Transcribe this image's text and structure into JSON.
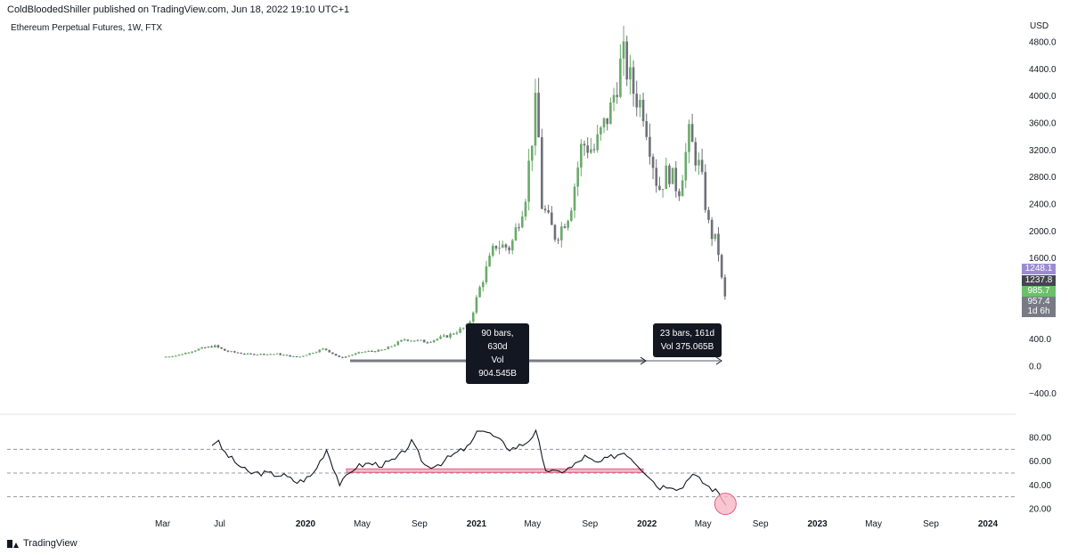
{
  "header": {
    "publisher": "ColdBloodedShiller published on TradingView.com, Jun 18, 2022 19:10 UTC+1"
  },
  "chart": {
    "symbol_label": "Ethereum Perpetual Futures, 1W, FTX",
    "currency": "USD"
  },
  "price_tags": [
    {
      "label": "1248.1",
      "color": "#9b8bd1"
    },
    {
      "label": "1237.8",
      "color": "#434651"
    },
    {
      "label": "985.7",
      "color": "#6cbf6b"
    },
    {
      "label": "957.4",
      "color": "#787b86"
    },
    {
      "label": "1d 6h",
      "color": "#787b86"
    }
  ],
  "measures": [
    {
      "bars": "90 bars, 630d",
      "vol": "Vol 904.545B"
    },
    {
      "bars": "23 bars, 161d",
      "vol": "Vol 375.065B"
    }
  ],
  "footer": {
    "brand": "TradingView"
  },
  "chart_data": [
    {
      "type": "candlestick",
      "title": "Ethereum Perpetual Futures, 1W, FTX",
      "ylabel": "USD",
      "y_ticks": [
        4800,
        4400,
        4000,
        3600,
        3200,
        2800,
        2400,
        2000,
        1600,
        400,
        0,
        -400
      ],
      "y_tick_labels": [
        "4800.0",
        "4400.0",
        "4000.0",
        "3600.0",
        "3200.0",
        "2800.0",
        "2400.0",
        "2000.0",
        "1600.0",
        "400.0",
        "0.0",
        "−400.0"
      ],
      "ylim": [
        -550,
        4900
      ],
      "x_tick_labels": [
        "Mar",
        "Jul",
        "2020",
        "May",
        "Sep",
        "2021",
        "May",
        "Sep",
        "2022",
        "May",
        "Sep",
        "2023",
        "May",
        "Sep",
        "2024"
      ],
      "x_tick_dates": [
        "2019-03-01",
        "2019-07-01",
        "2020-01-01",
        "2020-05-01",
        "2020-09-01",
        "2021-01-01",
        "2021-05-01",
        "2021-09-01",
        "2022-01-01",
        "2022-05-01",
        "2022-09-01",
        "2023-01-01",
        "2023-05-01",
        "2023-09-01",
        "2024-01-01"
      ],
      "close_path": [
        [
          "2019-03-01",
          134
        ],
        [
          "2019-04-01",
          160
        ],
        [
          "2019-05-15",
          250
        ],
        [
          "2019-06-20",
          300
        ],
        [
          "2019-07-15",
          220
        ],
        [
          "2019-09-01",
          175
        ],
        [
          "2019-11-01",
          180
        ],
        [
          "2019-12-15",
          130
        ],
        [
          "2020-02-10",
          260
        ],
        [
          "2020-03-15",
          120
        ],
        [
          "2020-05-01",
          210
        ],
        [
          "2020-06-15",
          235
        ],
        [
          "2020-08-01",
          400
        ],
        [
          "2020-09-15",
          360
        ],
        [
          "2020-11-01",
          450
        ],
        [
          "2020-12-15",
          600
        ],
        [
          "2021-01-10",
          1200
        ],
        [
          "2021-02-10",
          1800
        ],
        [
          "2021-03-15",
          1750
        ],
        [
          "2021-04-15",
          2500
        ],
        [
          "2021-05-10",
          4000
        ],
        [
          "2021-05-20",
          2400
        ],
        [
          "2021-06-20",
          1900
        ],
        [
          "2021-07-20",
          2300
        ],
        [
          "2021-08-15",
          3300
        ],
        [
          "2021-09-10",
          3200
        ],
        [
          "2021-10-15",
          3800
        ],
        [
          "2021-11-10",
          4600
        ],
        [
          "2021-12-01",
          4100
        ],
        [
          "2021-12-25",
          3800
        ],
        [
          "2022-01-25",
          2600
        ],
        [
          "2022-02-15",
          2900
        ],
        [
          "2022-03-10",
          2600
        ],
        [
          "2022-04-01",
          3400
        ],
        [
          "2022-04-25",
          2900
        ],
        [
          "2022-05-15",
          2000
        ],
        [
          "2022-06-01",
          1800
        ],
        [
          "2022-06-13",
          1100
        ],
        [
          "2022-06-18",
          985.7
        ]
      ],
      "last_price": 985.7
    },
    {
      "type": "line",
      "y_ticks": [
        80,
        60,
        40,
        20
      ],
      "y_tick_labels": [
        "80.00",
        "60.00",
        "40.00",
        "20.00"
      ],
      "levels": [
        70,
        50,
        30
      ],
      "ylim": [
        10,
        96
      ],
      "support_level": 52,
      "series": [
        {
          "values": [
            [
              "2019-06-15",
              74
            ],
            [
              "2019-06-25",
              78
            ],
            [
              "2019-07-10",
              68
            ],
            [
              "2019-08-01",
              60
            ],
            [
              "2019-09-01",
              50
            ],
            [
              "2019-10-01",
              50
            ],
            [
              "2019-11-15",
              48
            ],
            [
              "2019-12-15",
              42
            ],
            [
              "2020-01-15",
              48
            ],
            [
              "2020-02-15",
              70
            ],
            [
              "2020-03-15",
              40
            ],
            [
              "2020-04-15",
              55
            ],
            [
              "2020-05-15",
              58
            ],
            [
              "2020-06-15",
              57
            ],
            [
              "2020-07-15",
              62
            ],
            [
              "2020-08-15",
              76
            ],
            [
              "2020-09-15",
              55
            ],
            [
              "2020-10-15",
              58
            ],
            [
              "2020-11-15",
              66
            ],
            [
              "2020-12-15",
              72
            ],
            [
              "2021-01-10",
              88
            ],
            [
              "2021-02-10",
              80
            ],
            [
              "2021-03-15",
              70
            ],
            [
              "2021-04-15",
              75
            ],
            [
              "2021-05-10",
              85
            ],
            [
              "2021-05-25",
              54
            ],
            [
              "2021-06-20",
              50
            ],
            [
              "2021-07-25",
              55
            ],
            [
              "2021-08-20",
              64
            ],
            [
              "2021-09-15",
              58
            ],
            [
              "2021-10-20",
              64
            ],
            [
              "2021-11-15",
              68
            ],
            [
              "2021-12-10",
              58
            ],
            [
              "2022-01-05",
              48
            ],
            [
              "2022-01-25",
              38
            ],
            [
              "2022-02-20",
              40
            ],
            [
              "2022-03-15",
              36
            ],
            [
              "2022-04-05",
              50
            ],
            [
              "2022-04-25",
              44
            ],
            [
              "2022-05-15",
              38
            ],
            [
              "2022-06-05",
              33
            ],
            [
              "2022-06-18",
              24
            ]
          ]
        }
      ]
    }
  ]
}
